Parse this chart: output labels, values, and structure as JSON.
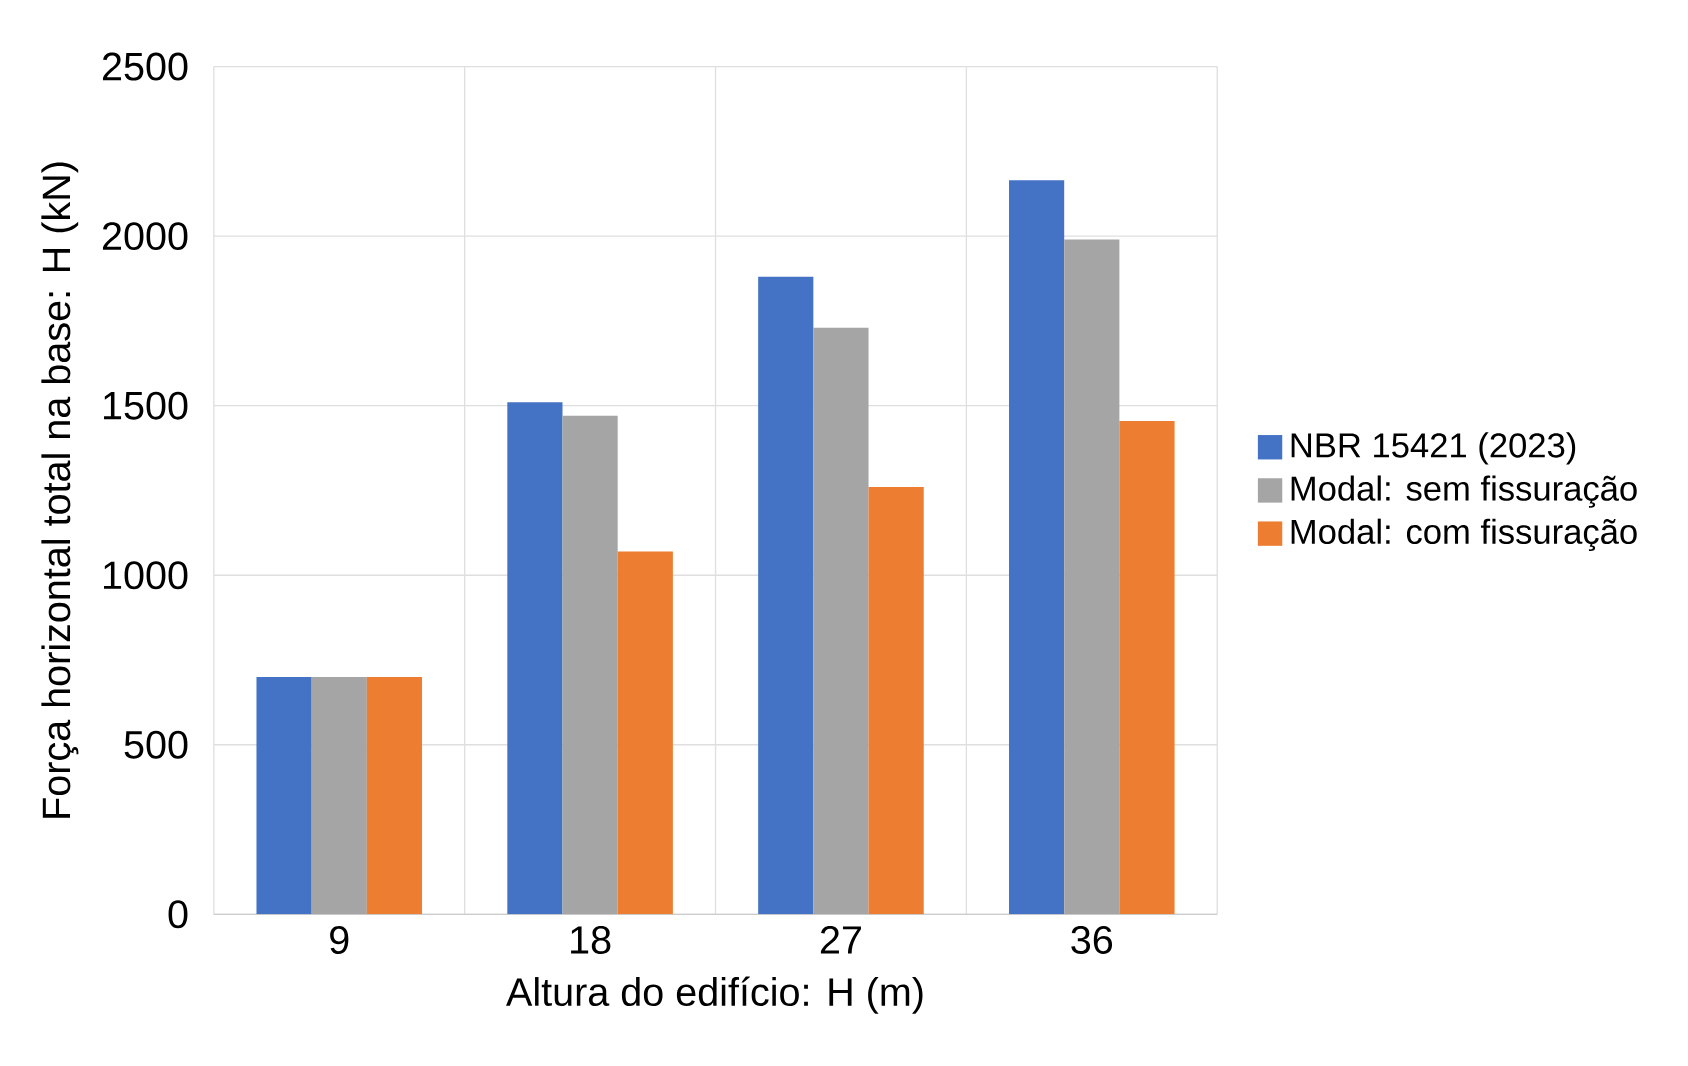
{
  "chart_data": {
    "type": "bar",
    "xlabel": "Altura do edifício: H (m)",
    "ylabel": "Força horizontal total na base: H (kN)",
    "categories": [
      "9",
      "18",
      "27",
      "36"
    ],
    "series": [
      {
        "name": "NBR 15421 (2023)",
        "color": "#4472c4",
        "values": [
          700,
          1510,
          1880,
          2165
        ]
      },
      {
        "name": "Modal: sem fissuração",
        "color": "#a5a5a5",
        "values": [
          700,
          1470,
          1730,
          1990
        ]
      },
      {
        "name": "Modal: com fissuração",
        "color": "#ed7d31",
        "values": [
          700,
          1070,
          1260,
          1455
        ]
      }
    ],
    "ylim": [
      0,
      2500
    ],
    "yticks": [
      0,
      500,
      1000,
      1500,
      2000,
      2500
    ],
    "grid": true,
    "legend": "right"
  }
}
